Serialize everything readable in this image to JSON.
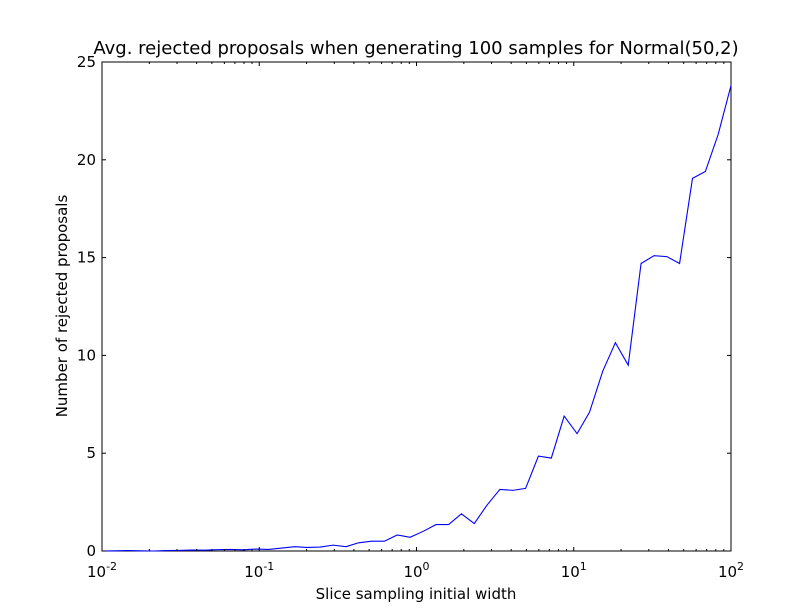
{
  "chart_data": {
    "type": "line",
    "title": "Avg. rejected proposals when generating 100 samples for Normal(50,2)",
    "xlabel": "Slice sampling initial width",
    "ylabel": "Number of rejected proposals",
    "xscale": "log",
    "xlim": [
      0.01,
      100
    ],
    "ylim": [
      0,
      25
    ],
    "grid": false,
    "legend": "none",
    "line_color": "#0000ff",
    "x_ticks": [
      {
        "value": 0.01,
        "base": "10",
        "exp": "-2"
      },
      {
        "value": 0.1,
        "base": "10",
        "exp": "-1"
      },
      {
        "value": 1,
        "base": "10",
        "exp": "0"
      },
      {
        "value": 10,
        "base": "10",
        "exp": "1"
      },
      {
        "value": 100,
        "base": "10",
        "exp": "2"
      }
    ],
    "y_ticks": [
      {
        "value": 0,
        "label": "0"
      },
      {
        "value": 5,
        "label": "5"
      },
      {
        "value": 10,
        "label": "10"
      },
      {
        "value": 15,
        "label": "15"
      },
      {
        "value": 20,
        "label": "20"
      },
      {
        "value": 25,
        "label": "25"
      }
    ],
    "series": [
      {
        "x": [
          0.01,
          0.0121,
          0.0146,
          0.0176,
          0.0212,
          0.0256,
          0.0309,
          0.0373,
          0.045,
          0.0543,
          0.0655,
          0.0791,
          0.0954,
          0.115,
          0.139,
          0.168,
          0.202,
          0.244,
          0.295,
          0.356,
          0.429,
          0.518,
          0.625,
          0.754,
          0.91,
          1.1,
          1.33,
          1.6,
          1.93,
          2.33,
          2.81,
          3.39,
          4.09,
          4.94,
          5.96,
          7.2,
          8.69,
          10.5,
          12.6,
          15.3,
          18.4,
          22.2,
          26.8,
          32.4,
          39.1,
          47.1,
          56.9,
          68.7,
          82.9,
          100
        ],
        "y": [
          0.0,
          0.01,
          0.02,
          0.01,
          0.0,
          0.02,
          0.03,
          0.05,
          0.04,
          0.07,
          0.08,
          0.06,
          0.1,
          0.08,
          0.15,
          0.22,
          0.18,
          0.2,
          0.3,
          0.22,
          0.42,
          0.5,
          0.5,
          0.82,
          0.7,
          1.0,
          1.35,
          1.35,
          1.9,
          1.4,
          2.35,
          3.15,
          3.1,
          3.2,
          4.85,
          4.75,
          6.9,
          6.0,
          7.1,
          9.2,
          10.65,
          9.5,
          14.7,
          15.1,
          15.05,
          14.7,
          19.05,
          19.4,
          21.3,
          23.8
        ]
      }
    ]
  }
}
